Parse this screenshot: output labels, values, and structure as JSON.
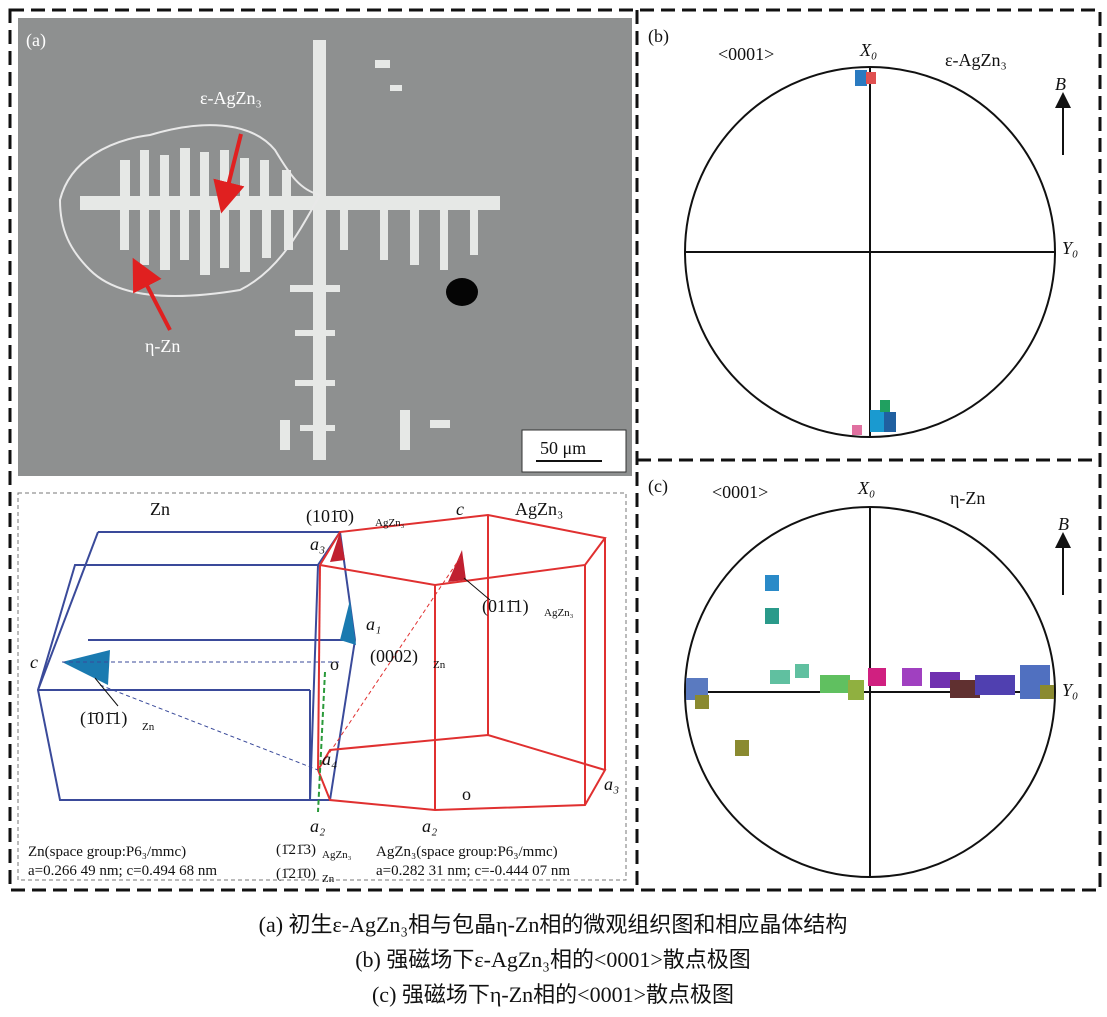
{
  "panel_a": {
    "label": "(a)",
    "phase_eps": "ε-AgZn₃",
    "phase_eta": "η-Zn",
    "scale_bar": "50 μm"
  },
  "crystal": {
    "zn_title": "Zn",
    "agzn_title": "AgZn₃",
    "plane_1010": {
      "text": "(101̄0)",
      "sub": "AgZn₃"
    },
    "plane_0111": {
      "text": "(011̄1)",
      "sub": "AgZn₃"
    },
    "plane_0002": {
      "text": "(0002)",
      "sub": "Zn"
    },
    "plane_1011": {
      "text": "(1̄01̄1)",
      "sub": "Zn"
    },
    "plane_1213": {
      "text": "(1̄21̄3)",
      "sub": "AgZn₃"
    },
    "plane_1210": {
      "text": "(1̄21̄0)",
      "sub": "Zn"
    },
    "axis_c_top": "c",
    "axis_c_left": "c",
    "axis_a3_blue": "a₃",
    "axis_a1": "a₁",
    "origin_blue": "o",
    "axis_a4": "a₄",
    "axis_a2_blue": "a₂",
    "axis_a2_red": "a₂",
    "origin_red": "o",
    "axis_a3_red": "a₃",
    "zn_info": "Zn(space group:P6₃/mmc)",
    "zn_params": "a=0.266 49 nm; c=0.494 68 nm",
    "agzn_info": "AgZn₃(space group:P6₃/mmc)",
    "agzn_params": "a=0.282 31 nm; c=-0.444 07 nm"
  },
  "panel_b": {
    "label": "(b)",
    "direction": "<0001>",
    "x0": "X₀",
    "phase": "ε-AgZn₃",
    "b_field": "B",
    "y0": "Y₀"
  },
  "panel_c": {
    "label": "(c)",
    "direction": "<0001>",
    "x0": "X₀",
    "phase": "η-Zn",
    "b_field": "B",
    "y0": "Y₀"
  },
  "caption": [
    "(a) 初生ε-AgZn₃相与包晶η-Zn相的微观组织图和相应晶体结构",
    "(b) 强磁场下ε-AgZn₃相的<0001>散点极图",
    "(c) 强磁场下η-Zn相的<0001>散点极图"
  ]
}
